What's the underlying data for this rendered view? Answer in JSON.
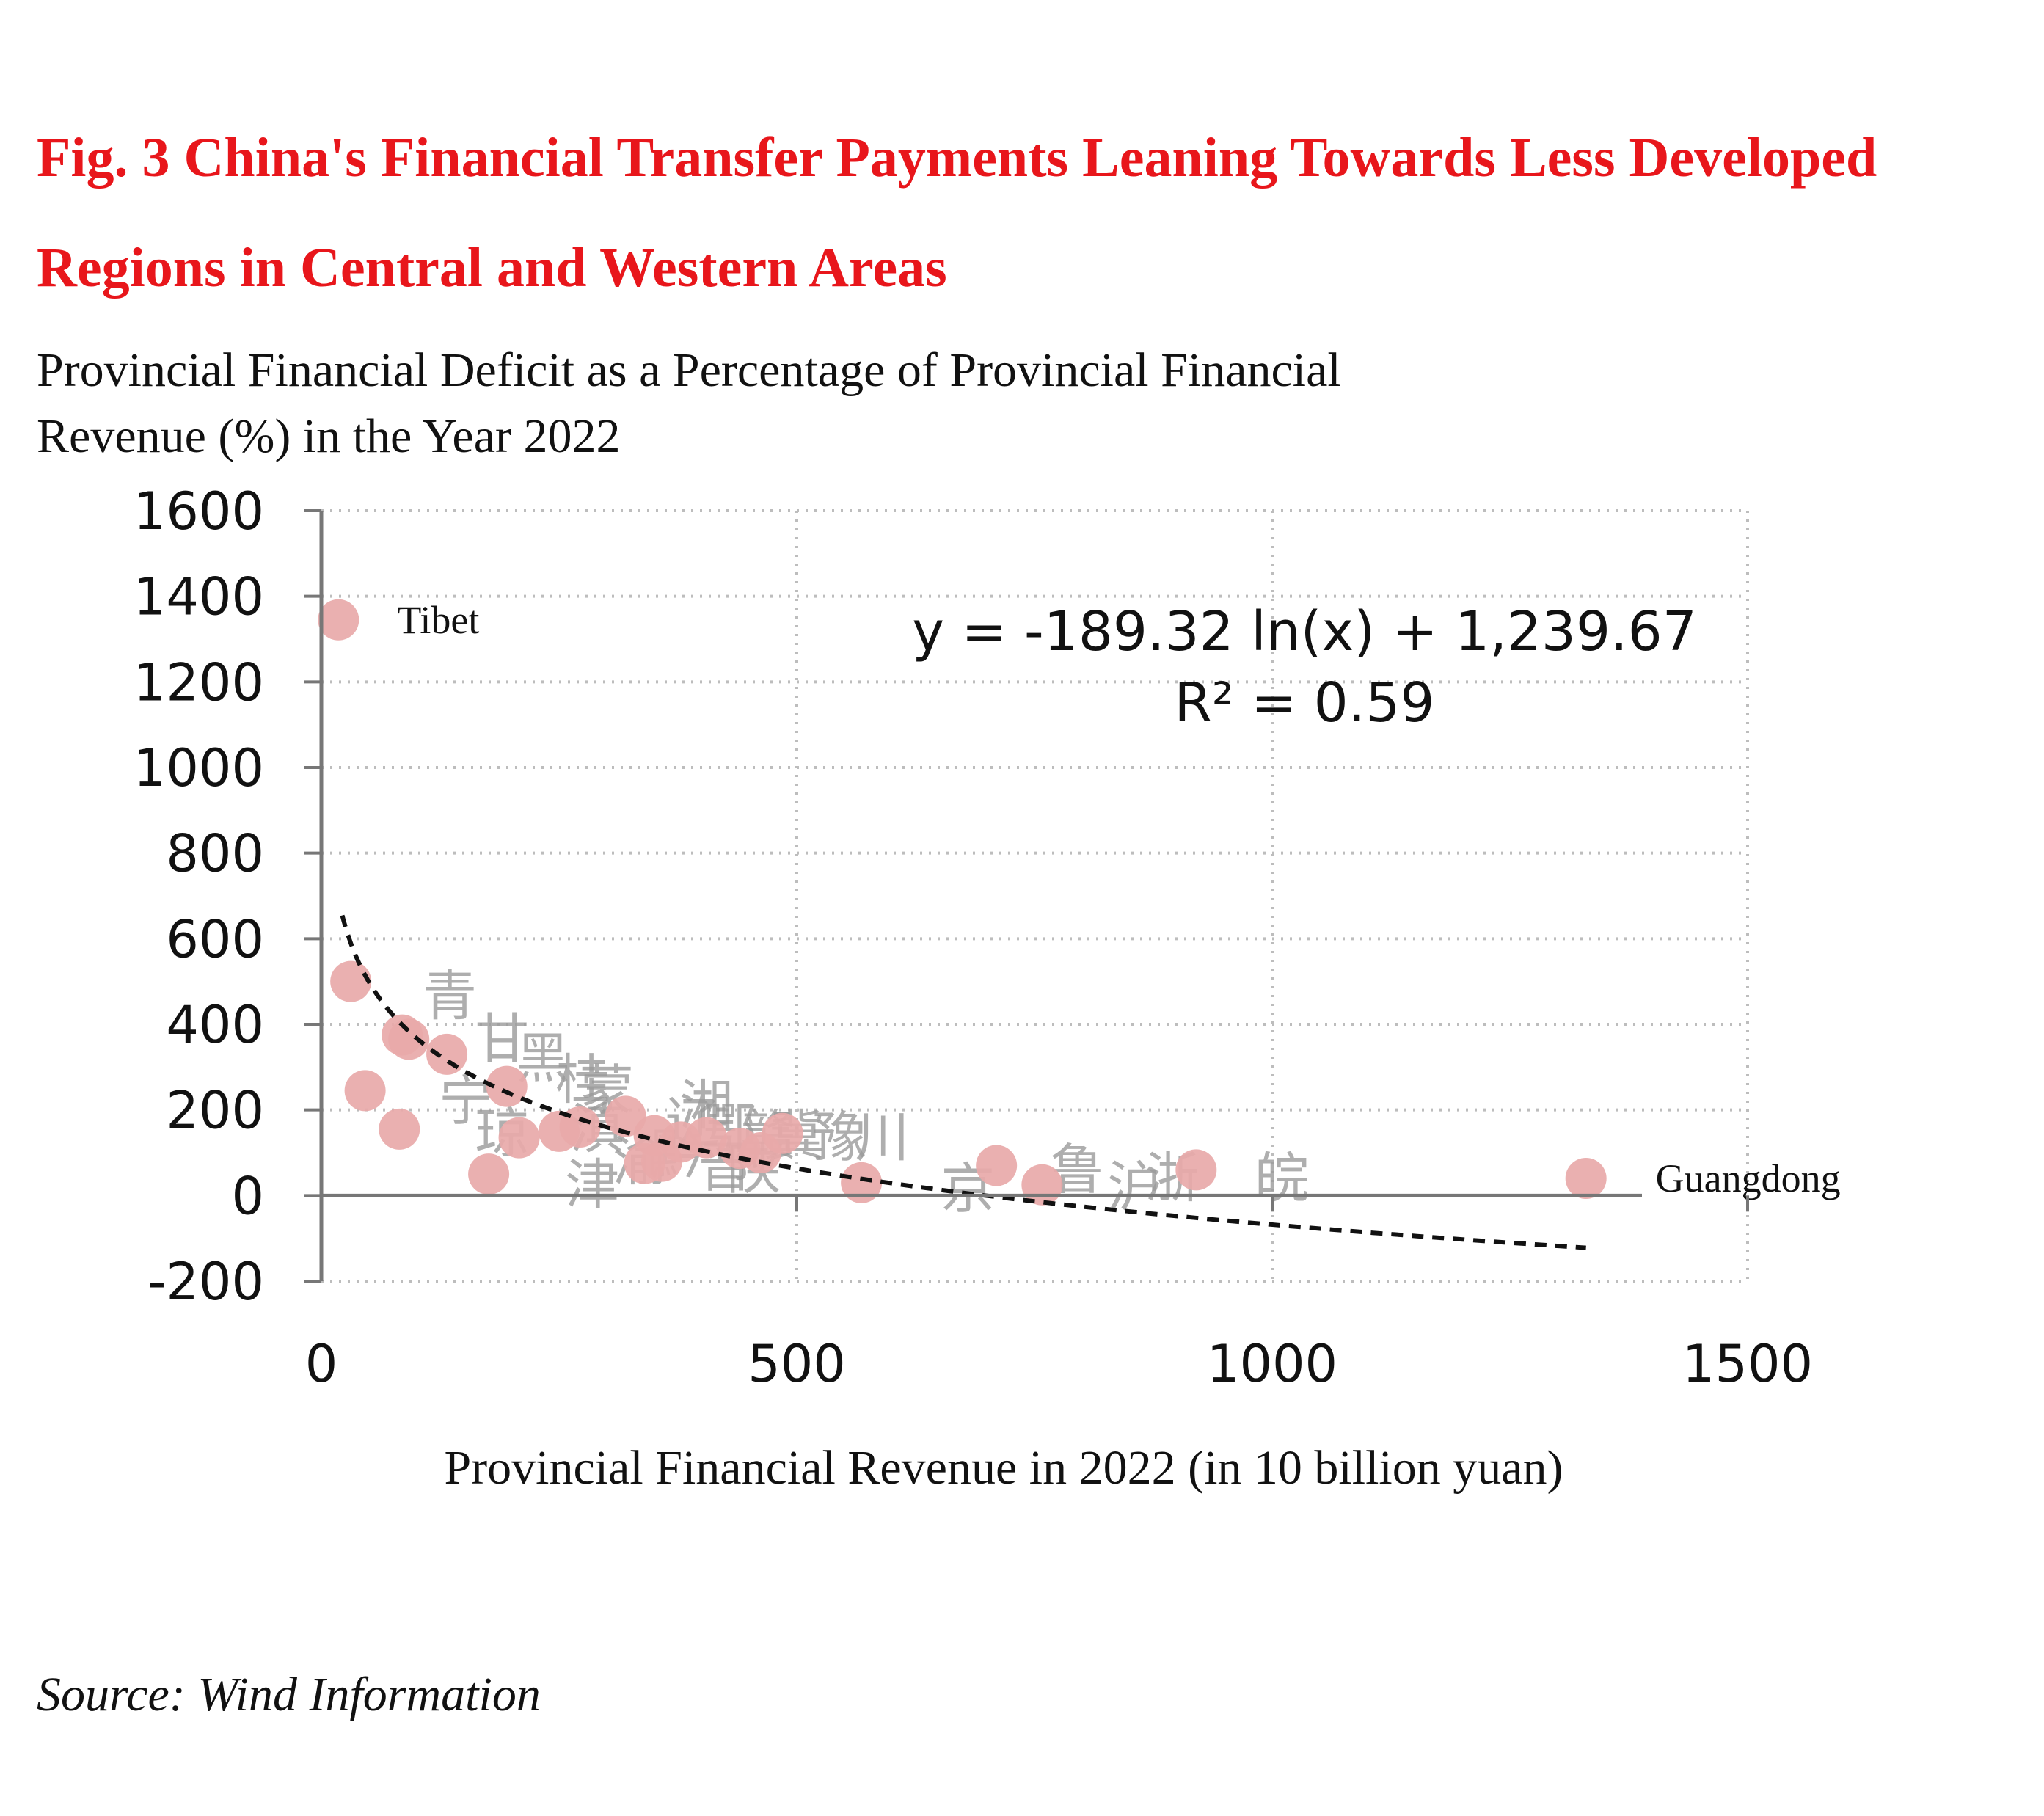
{
  "figure": {
    "label": "Fig. 3",
    "title": "China's Financial Transfer Payments Leaning Towards Less Developed Regions in Central and Western Areas",
    "accent_color": "#e8161b"
  },
  "chart_title": "Provincial Financial Deficit as a Percentage of Provincial Financial Revenue (%) in the Year 2022",
  "source": "Source: Wind Information",
  "chart_data": {
    "type": "scatter",
    "xlabel": "Provincial Financial Revenue in 2022 (in 10 billion yuan)",
    "ylabel": "",
    "xlim": [
      0,
      1500
    ],
    "ylim": [
      -200,
      1600
    ],
    "x_ticks": [
      "0",
      "500",
      "1000",
      "1500"
    ],
    "y_ticks": [
      "1600",
      "1400",
      "1200",
      "1000",
      "800",
      "600",
      "400",
      "200",
      "0",
      "-200"
    ],
    "grid": true,
    "point_color": "#e8a9a9",
    "trendline": {
      "type": "logarithmic",
      "a": -189.32,
      "b": 1239.67,
      "x_range": [
        22,
        1330
      ],
      "equation": "y = -189.32 ln(x) + 1,239.67",
      "r2": "R² = 0.59"
    },
    "points": [
      {
        "x": 18,
        "y": 1345,
        "label": "Tibet"
      },
      {
        "x": 31,
        "y": 500
      },
      {
        "x": 46,
        "y": 245
      },
      {
        "x": 82,
        "y": 155
      },
      {
        "x": 85,
        "y": 375
      },
      {
        "x": 92,
        "y": 365
      },
      {
        "x": 132,
        "y": 330
      },
      {
        "x": 176,
        "y": 50
      },
      {
        "x": 195,
        "y": 255
      },
      {
        "x": 208,
        "y": 135
      },
      {
        "x": 250,
        "y": 150
      },
      {
        "x": 272,
        "y": 160
      },
      {
        "x": 320,
        "y": 185
      },
      {
        "x": 340,
        "y": 75
      },
      {
        "x": 350,
        "y": 140
      },
      {
        "x": 358,
        "y": 80
      },
      {
        "x": 378,
        "y": 125
      },
      {
        "x": 405,
        "y": 135
      },
      {
        "x": 440,
        "y": 110
      },
      {
        "x": 462,
        "y": 100
      },
      {
        "x": 485,
        "y": 145
      },
      {
        "x": 568,
        "y": 30
      },
      {
        "x": 710,
        "y": 70
      },
      {
        "x": 758,
        "y": 25
      },
      {
        "x": 920,
        "y": 60
      },
      {
        "x": 1330,
        "y": 40,
        "label": "Guangdong"
      }
    ],
    "province_labels": [
      {
        "x": 135,
        "y": 470,
        "text": "青"
      },
      {
        "x": 190,
        "y": 370,
        "text": "甘"
      },
      {
        "x": 233,
        "y": 325,
        "text": "黑"
      },
      {
        "x": 152,
        "y": 225,
        "text": "宁"
      },
      {
        "x": 190,
        "y": 150,
        "text": "琼"
      },
      {
        "x": 275,
        "y": 275,
        "text": "桂"
      },
      {
        "x": 300,
        "y": 250,
        "text": "蒙"
      },
      {
        "x": 290,
        "y": 160,
        "text": "滇"
      },
      {
        "x": 285,
        "y": 30,
        "text": "津"
      },
      {
        "x": 335,
        "y": 85,
        "text": "渝"
      },
      {
        "x": 375,
        "y": 100,
        "text": "黔"
      },
      {
        "x": 390,
        "y": 175,
        "text": "辽"
      },
      {
        "x": 405,
        "y": 215,
        "text": "湘"
      },
      {
        "x": 430,
        "y": 160,
        "text": "鄂"
      },
      {
        "x": 425,
        "y": 70,
        "text": "晋"
      },
      {
        "x": 455,
        "y": 65,
        "text": "陕"
      },
      {
        "x": 470,
        "y": 145,
        "text": "赣"
      },
      {
        "x": 500,
        "y": 145,
        "text": "冀"
      },
      {
        "x": 545,
        "y": 140,
        "text": "豫"
      },
      {
        "x": 590,
        "y": 140,
        "text": "川"
      },
      {
        "x": 680,
        "y": 20,
        "text": "京"
      },
      {
        "x": 795,
        "y": 65,
        "text": "鲁"
      },
      {
        "x": 855,
        "y": 25,
        "text": "沪"
      },
      {
        "x": 895,
        "y": 45,
        "text": "浙"
      },
      {
        "x": 1010,
        "y": 45,
        "text": "皖"
      }
    ]
  }
}
